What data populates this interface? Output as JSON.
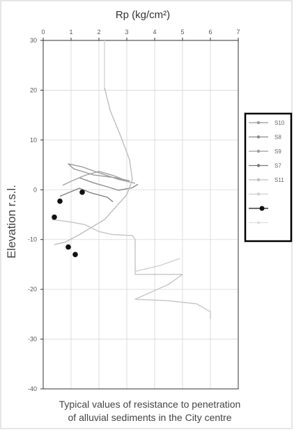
{
  "chart_data": {
    "type": "line",
    "xlabel": "Rp (kg/cm²)",
    "ylabel": "Elevation r.s.l.",
    "xlim": [
      0,
      7
    ],
    "ylim": [
      -40,
      30
    ],
    "x_ticks": [
      "0",
      "1",
      "2",
      "3",
      "4",
      "5",
      "6",
      "7"
    ],
    "y_ticks": [
      "30",
      "20",
      "10",
      "0",
      "-10",
      "-20",
      "-30",
      "-40"
    ],
    "grid": true,
    "legend_position": "right",
    "legend": [
      "S10",
      "S8",
      "S9",
      "S7",
      "S11",
      "",
      "",
      ""
    ],
    "series": [
      {
        "name": "S10",
        "color": "#9a9a9a",
        "points": [
          [
            3.1,
            1.8
          ],
          [
            2.6,
            2.4
          ],
          [
            1.8,
            3.0
          ],
          [
            1.1,
            4.2
          ],
          [
            0.9,
            5.2
          ],
          [
            1.4,
            4.6
          ],
          [
            2.0,
            3.4
          ],
          [
            2.7,
            2.1
          ],
          [
            3.3,
            1.3
          ]
        ]
      },
      {
        "name": "S8",
        "color": "#8c8c8c",
        "points": [
          [
            1.3,
            2.4
          ],
          [
            1.8,
            1.4
          ],
          [
            2.3,
            0.6
          ],
          [
            2.7,
            -0.1
          ],
          [
            3.2,
            0.4
          ],
          [
            3.4,
            1.1
          ]
        ]
      },
      {
        "name": "S9",
        "color": "#a3a3a3",
        "points": [
          [
            0.7,
            0.9
          ],
          [
            1.0,
            1.7
          ],
          [
            1.5,
            2.9
          ],
          [
            2.0,
            3.7
          ],
          [
            2.5,
            2.9
          ],
          [
            3.0,
            1.8
          ]
        ]
      },
      {
        "name": "S7",
        "color": "#7f7f7f",
        "points": [
          [
            0.6,
            -1.3
          ],
          [
            0.9,
            -0.6
          ],
          [
            1.3,
            0.3
          ],
          [
            1.7,
            -0.6
          ],
          [
            2.3,
            -1.5
          ],
          [
            2.5,
            -2.4
          ]
        ]
      },
      {
        "name": "S11",
        "color": "#bdbdbd",
        "points": [
          [
            2.2,
            20.5
          ],
          [
            2.4,
            16.0
          ],
          [
            2.8,
            10.5
          ],
          [
            3.1,
            6.0
          ],
          [
            3.2,
            2.0
          ],
          [
            3.0,
            -1.0
          ],
          [
            2.2,
            -6.0
          ],
          [
            1.3,
            -9.0
          ],
          [
            0.8,
            -10.5
          ],
          [
            0.4,
            -11.0
          ]
        ]
      },
      {
        "name": "",
        "color": "#c6c6c6",
        "points": [
          [
            0.3,
            -6.0
          ],
          [
            0.9,
            -6.4
          ],
          [
            1.5,
            -7.0
          ],
          [
            2.0,
            -8.4
          ],
          [
            2.5,
            -9.0
          ],
          [
            3.2,
            -9.2
          ],
          [
            3.3,
            -10.0
          ],
          [
            3.3,
            -14.0
          ],
          [
            3.3,
            -17.0
          ],
          [
            5.0,
            -17.0
          ],
          [
            4.5,
            -19.0
          ],
          [
            3.3,
            -22.0
          ],
          [
            4.5,
            -22.3
          ],
          [
            5.5,
            -22.9
          ],
          [
            6.0,
            -24.5
          ],
          [
            6.0,
            -26.0
          ]
        ]
      },
      {
        "name": "",
        "color": "#d0d0d0",
        "points": [
          [
            4.9,
            -13.8
          ],
          [
            4.2,
            -15.2
          ],
          [
            3.3,
            -16.4
          ]
        ]
      }
    ],
    "points": [
      [
        1.4,
        -0.5
      ],
      [
        0.6,
        -2.3
      ],
      [
        0.4,
        -5.5
      ],
      [
        0.9,
        -11.5
      ],
      [
        1.15,
        -13.0
      ]
    ],
    "vertical_line_x": 2.2,
    "vertical_line_y_range": [
      20,
      30
    ],
    "vertical_line_color": "#d8d8d8"
  },
  "caption": {
    "line1": "Typical values of resistance to penetration",
    "line2": "of alluvial sediments in the City centre"
  },
  "colors": {
    "frame": "#000000",
    "grid": "#d6d6d6",
    "points": "#111111",
    "text": "#444444"
  }
}
